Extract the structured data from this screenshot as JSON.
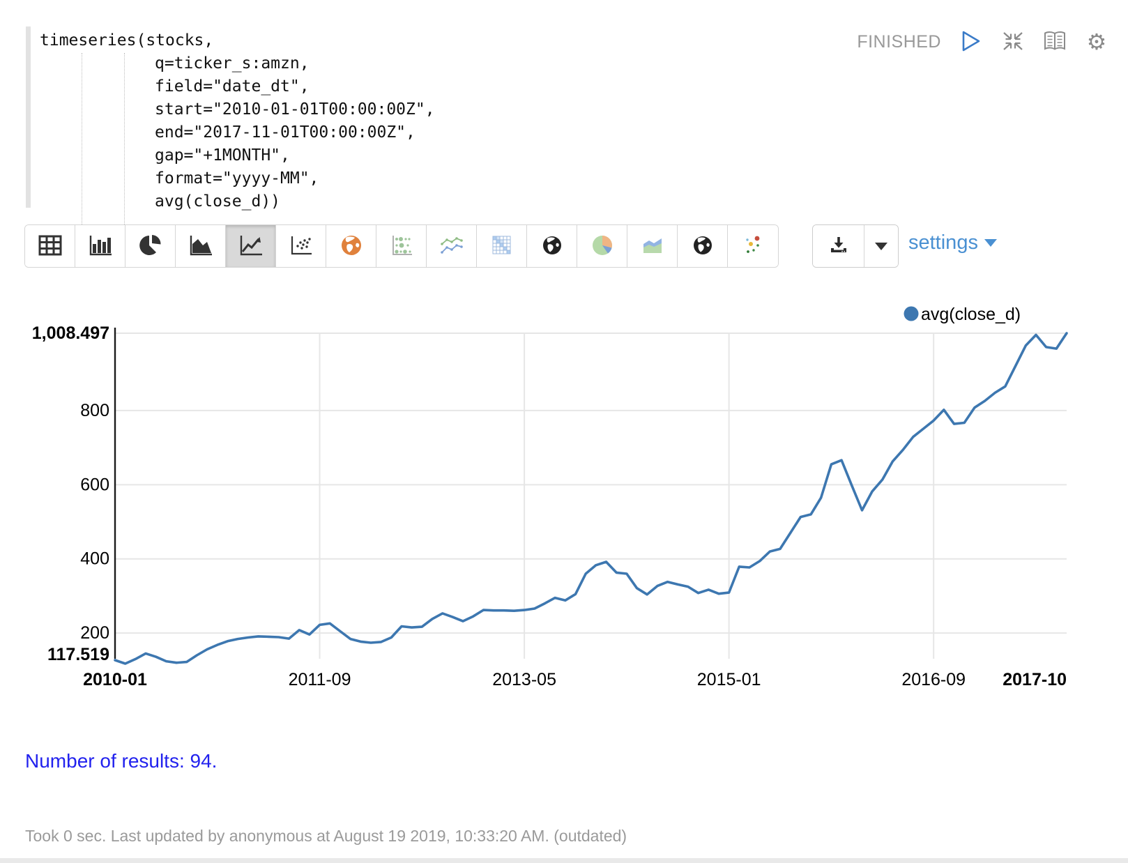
{
  "editor": {
    "code_lines": [
      "timeseries(stocks,",
      "q=ticker_s:amzn,",
      "field=\"date_dt\",",
      "start=\"2010-01-01T00:00:00Z\",",
      "end=\"2017-11-01T00:00:00Z\",",
      "gap=\"+1MONTH\",",
      "format=\"yyyy-MM\",",
      "avg(close_d))"
    ],
    "status": "FINISHED"
  },
  "toolbar": {
    "chart_type_icons": [
      "table",
      "bar-chart",
      "pie-chart",
      "area-chart",
      "line-chart",
      "scatter-plot",
      "globe-map-orange",
      "bubble-matrix",
      "multi-line-chart",
      "heatmap",
      "globe-map-dark",
      "pie-chart-color",
      "stacked-area-chart",
      "globe-map-dark-2",
      "scatter-color"
    ],
    "selected_icon": "line-chart",
    "settings_label": "settings"
  },
  "chart_data": {
    "type": "line",
    "title": "",
    "legend": [
      {
        "name": "avg(close_d)",
        "color": "#3d77b0"
      }
    ],
    "x_axis_field": "date_dt (yyyy-MM)",
    "ylim": [
      117.519,
      1008.497
    ],
    "grid": true,
    "y_ticks": [
      {
        "v": 117.519,
        "label": "117.519",
        "bold": true
      },
      {
        "v": 200,
        "label": "200"
      },
      {
        "v": 400,
        "label": "400"
      },
      {
        "v": 600,
        "label": "600"
      },
      {
        "v": 800,
        "label": "800"
      },
      {
        "v": 1008.497,
        "label": "1,008.497",
        "bold": true
      }
    ],
    "x_ticks": [
      {
        "pos": 0,
        "label": "2010-01",
        "bold": true,
        "grid": false
      },
      {
        "pos": 20,
        "label": "2011-09",
        "bold": false,
        "grid": true
      },
      {
        "pos": 40,
        "label": "2013-05",
        "bold": false,
        "grid": true
      },
      {
        "pos": 60,
        "label": "2015-01",
        "bold": false,
        "grid": true
      },
      {
        "pos": 80,
        "label": "2016-09",
        "bold": false,
        "grid": true
      },
      {
        "pos": 93,
        "label": "2017-10",
        "bold": true,
        "grid": false
      }
    ],
    "categories": [
      "2010-01",
      "2010-02",
      "2010-03",
      "2010-04",
      "2010-05",
      "2010-06",
      "2010-07",
      "2010-08",
      "2010-09",
      "2010-10",
      "2010-11",
      "2010-12",
      "2011-01",
      "2011-02",
      "2011-03",
      "2011-04",
      "2011-05",
      "2011-06",
      "2011-07",
      "2011-08",
      "2011-09",
      "2011-10",
      "2011-11",
      "2011-12",
      "2012-01",
      "2012-02",
      "2012-03",
      "2012-04",
      "2012-05",
      "2012-06",
      "2012-07",
      "2012-08",
      "2012-09",
      "2012-10",
      "2012-11",
      "2012-12",
      "2013-01",
      "2013-02",
      "2013-03",
      "2013-04",
      "2013-05",
      "2013-06",
      "2013-07",
      "2013-08",
      "2013-09",
      "2013-10",
      "2013-11",
      "2013-12",
      "2014-01",
      "2014-02",
      "2014-03",
      "2014-04",
      "2014-05",
      "2014-06",
      "2014-07",
      "2014-08",
      "2014-09",
      "2014-10",
      "2014-11",
      "2014-12",
      "2015-01",
      "2015-02",
      "2015-03",
      "2015-04",
      "2015-05",
      "2015-06",
      "2015-07",
      "2015-08",
      "2015-09",
      "2015-10",
      "2015-11",
      "2015-12",
      "2016-01",
      "2016-02",
      "2016-03",
      "2016-04",
      "2016-05",
      "2016-06",
      "2016-07",
      "2016-08",
      "2016-09",
      "2016-10",
      "2016-11",
      "2016-12",
      "2017-01",
      "2017-02",
      "2017-03",
      "2017-04",
      "2017-05",
      "2017-06",
      "2017-07",
      "2017-08",
      "2017-09",
      "2017-10"
    ],
    "series": [
      {
        "name": "avg(close_d)",
        "values": [
          127.0,
          117.519,
          130.0,
          145.0,
          136.0,
          124.0,
          120.0,
          122.0,
          140.0,
          156.0,
          168.0,
          178.0,
          184.0,
          188.0,
          191.0,
          190.0,
          189.0,
          185.0,
          208.0,
          196.0,
          222.0,
          226.0,
          205.0,
          184.0,
          177.0,
          174.0,
          176.0,
          188.0,
          218.0,
          215.0,
          217.0,
          238.0,
          253.0,
          243.0,
          232.0,
          245.0,
          262.0,
          261.0,
          261.0,
          260.0,
          262.0,
          266.0,
          280.0,
          295.0,
          288.0,
          305.0,
          360.0,
          383.0,
          392.0,
          363.0,
          360.0,
          321.0,
          304.0,
          327.0,
          338.0,
          331.0,
          325.0,
          308.0,
          317.0,
          306.0,
          309.0,
          379.0,
          377.0,
          394.0,
          420.0,
          427.0,
          470.0,
          513.0,
          520.0,
          565.0,
          655.0,
          666.0,
          598.0,
          531.0,
          582.0,
          614.0,
          663.0,
          694.0,
          729.0,
          751.0,
          773.0,
          802.0,
          764.0,
          767.0,
          808.0,
          826.0,
          848.0,
          865.0,
          920.0,
          975.0,
          1004.0,
          971.0,
          967.0,
          1008.497
        ]
      }
    ],
    "line_color": "#3d77b0",
    "gridline_color": "#e6e6e6",
    "axis_color": "#1a1a1a"
  },
  "footer": {
    "results_text": "Number of results: 94.",
    "status_line": "Took 0 sec. Last updated by anonymous at August 19 2019, 10:33:20 AM. (outdated)"
  }
}
